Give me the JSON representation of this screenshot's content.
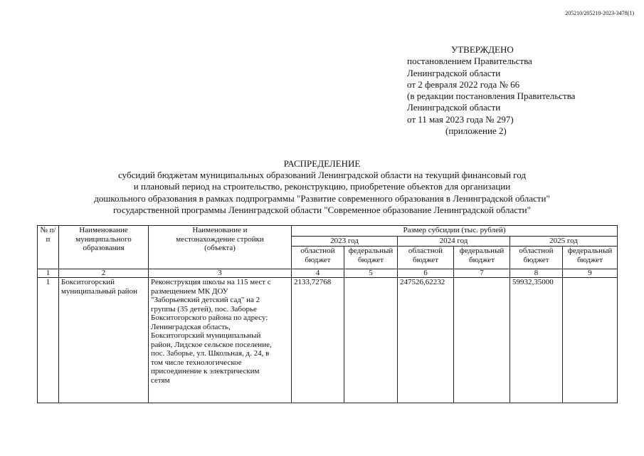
{
  "stamp": "205210/205210-2023-3478(1)",
  "approval": {
    "lines": [
      "УТВЕРЖДЕНО",
      "постановлением Правительства",
      "Ленинградской области",
      "от 2 февраля 2022 года № 66",
      "(в редакции постановления Правительства",
      "Ленинградской области",
      "от 11 мая 2023 года № 297)",
      "(приложение 2)"
    ]
  },
  "title": {
    "heading": "РАСПРЕДЕЛЕНИЕ",
    "lines": [
      "субсидий бюджетам муниципальных образований Ленинградской области на текущий финансовый год",
      "и плановый период на строительство, реконструкцию, приобретение объектов для организации",
      "дошкольного образования в рамках подпрограммы \"Развитие современного образования в Ленинградской области\"",
      "государственной программы Ленинградской области \"Современное образование Ленинградской области\""
    ]
  },
  "table": {
    "headers": {
      "num": "№ п/п",
      "municipality": "Наименование муниципального образования",
      "object": "Наименование и местонахождение стройки (объекта)",
      "subsidy": "Размер субсидии (тыс. рублей)",
      "years": [
        "2023 год",
        "2024 год",
        "2025 год"
      ],
      "regional": "областной бюджет",
      "federal": "федеральный бюджет"
    },
    "column_numbers": [
      "1",
      "2",
      "3",
      "4",
      "5",
      "6",
      "7",
      "8",
      "9"
    ],
    "rows": [
      {
        "num": "1",
        "municipality": "Бокситогорский муниципальный район",
        "object": "Реконструкция школы на 115 мест с размещением МК ДОУ \"Заборьевский детский сад\" на 2 группы (35 детей), пос. Заборье Бокситогорского района по адресу: Ленинградская область, Бокситогорский муниципальный район, Лидское сельское поселение, пос. Заборье, ул. Школьная, д. 24, в том числе технологическое присоединение к электрическим сетям",
        "values": [
          "2133,72768",
          "",
          "247526,62232",
          "",
          "59932,35000",
          ""
        ]
      }
    ]
  }
}
